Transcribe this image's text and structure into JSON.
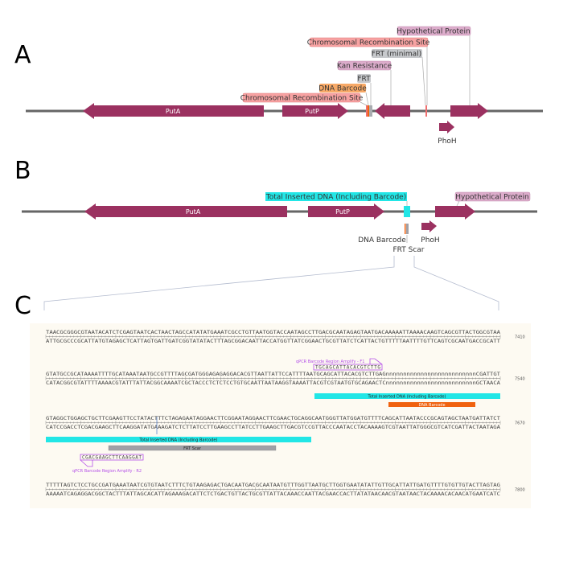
{
  "panels": {
    "a": "A",
    "b": "B",
    "c": "C"
  },
  "colors": {
    "gene": "#9b3160",
    "backbone": "#666666",
    "recomb": "#f7a2a2",
    "frt": "#c7c9cc",
    "kan": "#dcaccb",
    "barcode": "#f7a967",
    "inserted": "#22e6e6",
    "barcode_bar": "#f0620f",
    "frt_bar": "#a0a0a6",
    "primer": "#b44fe8",
    "seq_bg": "#fdfaf2"
  },
  "panel_a": {
    "genes": {
      "puta": "PutA",
      "putp": "PutP",
      "phoh": "PhoH"
    },
    "labels": {
      "hyp": "Hypothetical Protein",
      "crs_right": "Chromosomal Recombination Site",
      "frt_min": "FRT (minimal)",
      "kan": "Kan Resistance",
      "frt": "FRT",
      "barcode": "DNA Barcode",
      "crs_left": "Chromosomal Recombination Site"
    }
  },
  "panel_b": {
    "genes": {
      "puta": "PutA",
      "putp": "PutP",
      "phoh": "PhoH"
    },
    "labels": {
      "inserted": "Total Inserted DNA (Including Barcode)",
      "hyp": "Hypothetical Protein",
      "barcode": "DNA Barcode",
      "frt_scar": "FRT Scar"
    }
  },
  "panel_c": {
    "rows": [
      {
        "top": "TAACGCGGGCGTAATACATCTCGAGTAATCACTAACTAGCCATATATGAAATCGCCTGTTAATGGTACCAATAGCCTTGACGCAATAGAGTAATGACAAAAATTAAAACAAGTCAGCGTTACTGGCGTAA",
        "bottom": "ATTGCGCCCGCATTATGTAGAGCTCATTAGTGATTGATCGGTATATACTTTAGCGGACAATTACCATGGTTATCGGAACTGCGTTATCTCATTACTGTTTTTAATTTTGTTCAGTCGCAATGACCGCATT",
        "position": "7410"
      },
      {
        "top": "GTATGCCGCATAAAATTTTGCATAAATAATGCCGTTTTAGCGATGGGAGAGAGGACACGTTAATTATTCCATTTTAATGCAGCATTACACGTCTTGAGnnnnnnnnnnnnnnnnnnnnnnnnnnCGATTGT",
        "bottom": "CATACGGCGTATTTTAAAACGTATTTATTACGGCAAAATCGCTACCCTCTCTCCTGTGCAATTAATAAGGTAAAATTACGTCGTAATGTGCAGAACTCnnnnnnnnnnnnnnnnnnnnnnnnnnGCTAACA",
        "position": "7540"
      },
      {
        "top": "GTAGGCTGGAGCTGCTTCGAAGTTCCTATACTTTCTAGAGAATAGGAACTTCGGAATAGGAACTTCGAACTGCAGGCAATGGGTTATGGATGTTTTCAGCATTAATACCCGCAGTAGCTAATGATTATCT",
        "bottom": "CATCCGACCTCGACGAAGCTTCAAGGATATGAAAGATCTCTTATCCTTGAAGCCTTATCCTTGAAGCTTGACGTCCGTTACCCAATACCTACAAAAGTCGTAATTATGGGCGTCATCGATTACTAATAGA",
        "position": "7670"
      },
      {
        "top": "TTTTTAGTCTCCTGCCGATGAAATAATCGTGTAATCTTTCTGTAAGAGACTGACAATGACGCAATAATGTTTGGTTAATGCTTGGTGAATATATTGTTGCATTATTGATGTTTTGTGTTGTACTTAGTAG",
        "bottom": "AAAAATCAGAGGACGGCTACTTTATTAGCACATTAGAAAGACATTCTCTGACTGTTACTGCGTTATTACAAACCAATTACGAACCACTTATATAACAACGTAATAACTACAAAACACAACATGAATCATC",
        "position": "7800"
      }
    ],
    "features": {
      "inserted": "Total Inserted DNA (Including Barcode)",
      "barcode": "DNA Barcode",
      "frt_scar": "FRT Scar"
    },
    "primers": {
      "f1": {
        "label": "qPCR Barcode Region Amplify - F1",
        "seq": "TGCAGCATTACACGTCTTG"
      },
      "r2": {
        "label": "qPCR Barcode Region Amplify - R2",
        "seq": "CGACGAAGCTTCAAGGAT"
      }
    }
  }
}
